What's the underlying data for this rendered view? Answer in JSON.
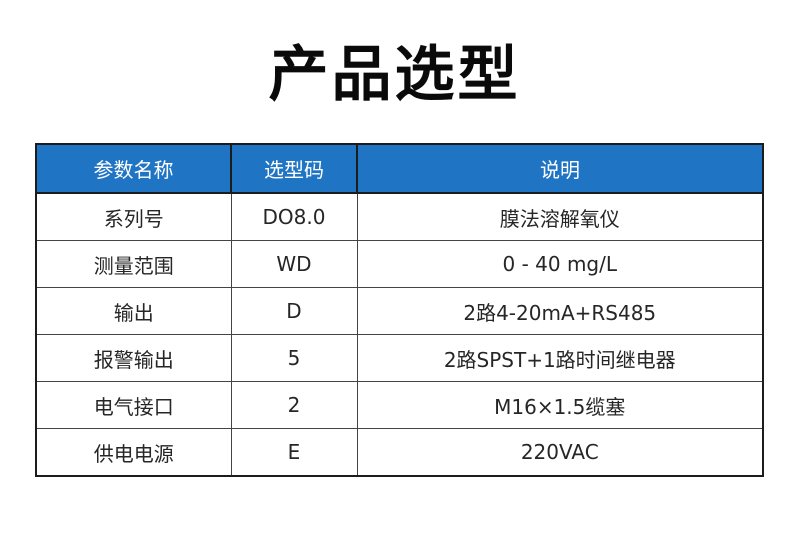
{
  "page": {
    "title": "产品选型"
  },
  "colors": {
    "header_bg": "#2074c4",
    "header_text": "#ffffff"
  },
  "table": {
    "headers": [
      "参数名称",
      "选型码",
      "说明"
    ],
    "rows": [
      {
        "param": "系列号",
        "code": "DO8.0",
        "desc": "膜法溶解氧仪"
      },
      {
        "param": "测量范围",
        "code": "WD",
        "desc": "0 - 40 mg/L"
      },
      {
        "param": "输出",
        "code": "D",
        "desc": "2路4-20mA+RS485"
      },
      {
        "param": "报警输出",
        "code": "5",
        "desc": "2路SPST+1路时间继电器"
      },
      {
        "param": "电气接口",
        "code": "2",
        "desc": "M16×1.5缆塞"
      },
      {
        "param": "供电电源",
        "code": "E",
        "desc": "220VAC"
      }
    ]
  }
}
